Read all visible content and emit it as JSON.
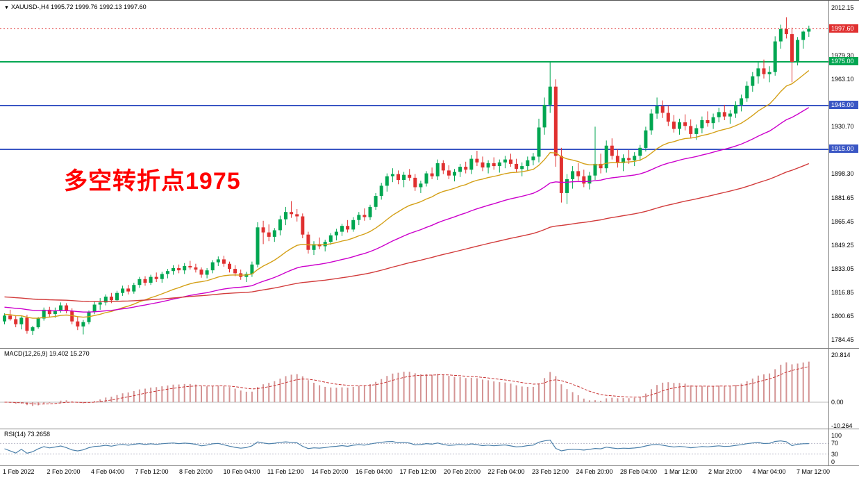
{
  "colors": {
    "up": "#00A651",
    "down": "#E03030",
    "hline_green": "#00A651",
    "hline_blue": "#3A56C4",
    "ma_fast": "#D4A017",
    "ma_mid": "#CC00CC",
    "ma_slow": "#D23B3B",
    "macd_hist": "#D49494",
    "macd_signal": "#C83232",
    "rsi": "#4C80AA"
  },
  "chart_data": {
    "type": "candlestick",
    "title_line": "XAUUSD-,H4 1995.72 1999.76 1992.13 1997.60",
    "symbol": "XAUUSD-",
    "timeframe": "H4",
    "current": {
      "open": 1995.72,
      "high": 1999.76,
      "low": 1992.13,
      "close": 1997.6
    },
    "price_range": {
      "top": 2012.15,
      "bottom": 1784.45
    },
    "price_ticks": [
      "2012.15",
      "1979.30",
      "1963.10",
      "1930.70",
      "1898.30",
      "1881.65",
      "1865.45",
      "1849.25",
      "1833.05",
      "1816.85",
      "1800.65",
      "1784.45"
    ],
    "time_labels": [
      "1 Feb 2022",
      "2 Feb 20:00",
      "4 Feb 04:00",
      "7 Feb 12:00",
      "8 Feb 20:00",
      "10 Feb 04:00",
      "11 Feb 12:00",
      "14 Feb 20:00",
      "16 Feb 04:00",
      "17 Feb 12:00",
      "20 Feb 20:00",
      "22 Feb 04:00",
      "23 Feb 12:00",
      "24 Feb 20:00",
      "28 Feb 04:00",
      "1 Mar 12:00",
      "2 Mar 20:00",
      "4 Mar 04:00",
      "7 Mar 12:00"
    ],
    "candles": [
      [
        1797.0,
        1802.5,
        1795.0,
        1801.0
      ],
      [
        1801.0,
        1805.0,
        1797.5,
        1798.5
      ],
      [
        1798.5,
        1801.0,
        1793.0,
        1795.0
      ],
      [
        1795.0,
        1800.5,
        1791.5,
        1799.5
      ],
      [
        1799.5,
        1801.5,
        1788.5,
        1790.5
      ],
      [
        1790.5,
        1794.0,
        1787.8,
        1793.0
      ],
      [
        1793.0,
        1800.0,
        1792.0,
        1799.0
      ],
      [
        1799.0,
        1806.5,
        1797.5,
        1805.0
      ],
      [
        1805.0,
        1807.0,
        1800.0,
        1802.0
      ],
      [
        1802.0,
        1806.5,
        1799.5,
        1804.5
      ],
      [
        1804.5,
        1810.0,
        1803.0,
        1808.0
      ],
      [
        1808.0,
        1809.5,
        1802.5,
        1804.0
      ],
      [
        1804.0,
        1806.0,
        1795.0,
        1797.0
      ],
      [
        1797.0,
        1800.0,
        1791.0,
        1793.5
      ],
      [
        1793.5,
        1798.0,
        1788.0,
        1796.5
      ],
      [
        1796.5,
        1804.5,
        1795.0,
        1803.5
      ],
      [
        1803.5,
        1811.0,
        1802.0,
        1808.5
      ],
      [
        1808.5,
        1813.0,
        1805.0,
        1810.0
      ],
      [
        1810.0,
        1815.5,
        1808.0,
        1814.0
      ],
      [
        1814.0,
        1816.5,
        1809.5,
        1811.5
      ],
      [
        1811.5,
        1818.0,
        1810.5,
        1816.5
      ],
      [
        1816.5,
        1821.5,
        1814.5,
        1819.5
      ],
      [
        1819.5,
        1822.0,
        1815.5,
        1817.5
      ],
      [
        1817.5,
        1823.5,
        1816.0,
        1822.0
      ],
      [
        1822.0,
        1827.5,
        1820.0,
        1826.0
      ],
      [
        1826.0,
        1828.0,
        1821.5,
        1823.5
      ],
      [
        1823.5,
        1829.0,
        1822.0,
        1827.5
      ],
      [
        1827.5,
        1830.5,
        1824.0,
        1826.0
      ],
      [
        1826.0,
        1831.0,
        1823.5,
        1829.5
      ],
      [
        1829.5,
        1833.0,
        1826.5,
        1831.5
      ],
      [
        1831.5,
        1835.5,
        1829.0,
        1833.5
      ],
      [
        1833.5,
        1836.0,
        1830.0,
        1832.0
      ],
      [
        1832.0,
        1837.0,
        1829.5,
        1835.0
      ],
      [
        1835.0,
        1838.5,
        1832.5,
        1834.0
      ],
      [
        1834.0,
        1836.5,
        1830.5,
        1832.5
      ],
      [
        1832.5,
        1834.0,
        1827.0,
        1829.0
      ],
      [
        1829.0,
        1833.5,
        1826.5,
        1832.0
      ],
      [
        1832.0,
        1839.0,
        1830.0,
        1837.5
      ],
      [
        1837.5,
        1841.5,
        1835.0,
        1839.5
      ],
      [
        1839.5,
        1842.0,
        1834.5,
        1836.5
      ],
      [
        1836.5,
        1838.0,
        1830.5,
        1833.0
      ],
      [
        1833.0,
        1835.5,
        1828.0,
        1830.0
      ],
      [
        1830.0,
        1832.5,
        1825.5,
        1827.5
      ],
      [
        1827.5,
        1831.0,
        1824.0,
        1829.5
      ],
      [
        1829.5,
        1838.0,
        1827.5,
        1836.0
      ],
      [
        1836.0,
        1865.0,
        1834.0,
        1861.5
      ],
      [
        1861.5,
        1866.0,
        1850.0,
        1858.0
      ],
      [
        1858.0,
        1863.5,
        1852.0,
        1855.0
      ],
      [
        1855.0,
        1861.0,
        1851.5,
        1859.5
      ],
      [
        1859.5,
        1869.5,
        1856.0,
        1867.0
      ],
      [
        1867.0,
        1875.5,
        1863.0,
        1872.0
      ],
      [
        1872.0,
        1879.5,
        1868.0,
        1870.5
      ],
      [
        1870.5,
        1874.0,
        1865.5,
        1869.0
      ],
      [
        1869.0,
        1871.0,
        1854.0,
        1856.5
      ],
      [
        1856.5,
        1858.5,
        1843.5,
        1846.0
      ],
      [
        1846.0,
        1852.0,
        1842.5,
        1850.0
      ],
      [
        1850.0,
        1854.5,
        1846.5,
        1848.5
      ],
      [
        1848.5,
        1853.0,
        1845.0,
        1851.5
      ],
      [
        1851.5,
        1857.5,
        1849.5,
        1856.0
      ],
      [
        1856.0,
        1860.5,
        1852.5,
        1858.5
      ],
      [
        1858.5,
        1864.0,
        1855.5,
        1862.5
      ],
      [
        1862.5,
        1866.5,
        1858.0,
        1860.0
      ],
      [
        1860.0,
        1868.5,
        1858.5,
        1866.5
      ],
      [
        1866.5,
        1872.0,
        1863.0,
        1870.0
      ],
      [
        1870.0,
        1874.5,
        1866.0,
        1868.5
      ],
      [
        1868.5,
        1877.0,
        1866.5,
        1875.5
      ],
      [
        1875.5,
        1885.0,
        1873.5,
        1883.0
      ],
      [
        1883.0,
        1892.0,
        1880.5,
        1890.0
      ],
      [
        1890.0,
        1898.5,
        1886.0,
        1896.5
      ],
      [
        1896.5,
        1902.0,
        1892.5,
        1898.0
      ],
      [
        1898.0,
        1900.5,
        1891.0,
        1894.0
      ],
      [
        1894.0,
        1899.5,
        1889.0,
        1897.5
      ],
      [
        1897.5,
        1901.5,
        1893.5,
        1895.5
      ],
      [
        1895.5,
        1898.0,
        1886.5,
        1889.0
      ],
      [
        1889.0,
        1893.5,
        1885.0,
        1891.5
      ],
      [
        1891.5,
        1900.0,
        1889.5,
        1898.5
      ],
      [
        1898.5,
        1902.5,
        1894.5,
        1896.5
      ],
      [
        1896.5,
        1908.0,
        1894.0,
        1905.5
      ],
      [
        1905.5,
        1907.5,
        1898.0,
        1900.5
      ],
      [
        1900.5,
        1904.0,
        1894.5,
        1897.0
      ],
      [
        1897.0,
        1901.5,
        1893.0,
        1899.5
      ],
      [
        1899.5,
        1905.0,
        1896.0,
        1903.0
      ],
      [
        1903.0,
        1906.5,
        1898.5,
        1901.0
      ],
      [
        1901.0,
        1911.0,
        1898.0,
        1908.5
      ],
      [
        1908.5,
        1914.0,
        1903.5,
        1906.0
      ],
      [
        1906.0,
        1910.0,
        1900.0,
        1902.5
      ],
      [
        1902.5,
        1907.5,
        1898.5,
        1905.5
      ],
      [
        1905.5,
        1909.5,
        1901.0,
        1903.5
      ],
      [
        1903.5,
        1908.0,
        1899.0,
        1906.0
      ],
      [
        1906.0,
        1910.5,
        1902.0,
        1908.0
      ],
      [
        1908.0,
        1912.0,
        1903.0,
        1905.0
      ],
      [
        1905.0,
        1908.5,
        1899.5,
        1901.5
      ],
      [
        1901.5,
        1906.0,
        1896.5,
        1903.5
      ],
      [
        1903.5,
        1910.0,
        1900.5,
        1907.5
      ],
      [
        1907.5,
        1912.5,
        1904.0,
        1910.0
      ],
      [
        1910.0,
        1936.0,
        1906.0,
        1930.0
      ],
      [
        1930.0,
        1950.5,
        1925.0,
        1945.5
      ],
      [
        1945.5,
        1974.5,
        1940.0,
        1958.0
      ],
      [
        1958.0,
        1963.0,
        1903.0,
        1910.5
      ],
      [
        1910.5,
        1916.0,
        1878.5,
        1885.0
      ],
      [
        1885.0,
        1898.0,
        1877.5,
        1894.5
      ],
      [
        1894.5,
        1903.5,
        1888.0,
        1900.0
      ],
      [
        1900.0,
        1905.5,
        1893.5,
        1896.5
      ],
      [
        1896.5,
        1901.0,
        1889.0,
        1891.5
      ],
      [
        1891.5,
        1899.5,
        1887.5,
        1897.0
      ],
      [
        1897.0,
        1930.5,
        1894.0,
        1905.0
      ],
      [
        1905.0,
        1912.0,
        1898.5,
        1902.0
      ],
      [
        1902.0,
        1921.0,
        1899.0,
        1917.5
      ],
      [
        1917.5,
        1922.5,
        1908.0,
        1910.5
      ],
      [
        1910.5,
        1915.0,
        1902.5,
        1905.5
      ],
      [
        1905.5,
        1911.5,
        1900.0,
        1909.0
      ],
      [
        1909.0,
        1914.5,
        1905.0,
        1907.5
      ],
      [
        1907.5,
        1913.0,
        1903.5,
        1910.5
      ],
      [
        1910.5,
        1918.0,
        1907.0,
        1916.0
      ],
      [
        1916.0,
        1930.5,
        1913.5,
        1928.0
      ],
      [
        1928.0,
        1942.5,
        1925.0,
        1939.5
      ],
      [
        1939.5,
        1950.5,
        1936.0,
        1944.5
      ],
      [
        1944.5,
        1948.5,
        1936.5,
        1940.0
      ],
      [
        1940.0,
        1945.0,
        1931.0,
        1934.0
      ],
      [
        1934.0,
        1938.5,
        1926.5,
        1929.0
      ],
      [
        1929.0,
        1936.0,
        1925.0,
        1933.5
      ],
      [
        1933.5,
        1939.0,
        1928.0,
        1931.0
      ],
      [
        1931.0,
        1935.5,
        1922.5,
        1925.5
      ],
      [
        1925.5,
        1932.0,
        1921.5,
        1929.5
      ],
      [
        1929.5,
        1937.5,
        1926.0,
        1935.0
      ],
      [
        1935.0,
        1941.0,
        1930.5,
        1933.0
      ],
      [
        1933.0,
        1939.5,
        1929.0,
        1937.0
      ],
      [
        1937.0,
        1943.5,
        1933.5,
        1940.5
      ],
      [
        1940.5,
        1945.5,
        1935.0,
        1937.5
      ],
      [
        1937.5,
        1942.0,
        1932.5,
        1939.5
      ],
      [
        1939.5,
        1948.0,
        1936.5,
        1945.5
      ],
      [
        1945.5,
        1952.5,
        1941.0,
        1950.0
      ],
      [
        1950.0,
        1961.5,
        1947.5,
        1958.5
      ],
      [
        1958.5,
        1968.0,
        1954.5,
        1965.0
      ],
      [
        1965.0,
        1974.5,
        1960.0,
        1970.5
      ],
      [
        1970.5,
        1976.5,
        1963.5,
        1966.5
      ],
      [
        1966.5,
        1972.0,
        1961.0,
        1968.0
      ],
      [
        1968.0,
        1992.5,
        1965.5,
        1989.0
      ],
      [
        1989.0,
        2000.5,
        1984.0,
        1997.5
      ],
      [
        1997.5,
        2005.5,
        1991.0,
        1994.0
      ],
      [
        1994.0,
        1998.5,
        1961.0,
        1975.0
      ],
      [
        1975.0,
        1992.0,
        1972.5,
        1990.0
      ],
      [
        1990.0,
        1996.5,
        1984.0,
        1995.7
      ],
      [
        1995.7,
        1999.8,
        1992.1,
        1997.6
      ]
    ],
    "overlays": {
      "annotation_text": "多空转折点1975",
      "hlines": [
        {
          "price": 1975.0,
          "color": "#00A651"
        },
        {
          "price": 1945.0,
          "color": "#3A56C4"
        },
        {
          "price": 1915.0,
          "color": "#3A56C4"
        }
      ],
      "price_tags": [
        {
          "text": "1997.60",
          "price": 1997.6,
          "color": "#E03030"
        },
        {
          "text": "1975.00",
          "price": 1975.0,
          "color": "#00A651"
        },
        {
          "text": "1945.00",
          "price": 1945.0,
          "color": "#3A56C4"
        },
        {
          "text": "1915.00",
          "price": 1915.0,
          "color": "#3A56C4"
        }
      ],
      "ma": [
        {
          "period": 20,
          "seed": 1802,
          "color": "#D4A017"
        },
        {
          "period": 48,
          "seed": 1807,
          "color": "#CC00CC"
        },
        {
          "period": 120,
          "seed": 1814,
          "color": "#D23B3B"
        }
      ]
    },
    "indicators": {
      "macd": {
        "label": "MACD(12,26,9) 19.402 15.270",
        "fast": 12,
        "slow": 26,
        "signal": 9,
        "main_value": 19.402,
        "signal_value": 15.27,
        "ticks": [
          "20.814",
          "0.00",
          "-10.264"
        ]
      },
      "rsi": {
        "label": "RSI(14) 73.2658",
        "period": 14,
        "value": 73.2658,
        "levels": [
          70,
          30
        ],
        "ticks": [
          "100",
          "70",
          "30",
          "0"
        ]
      }
    }
  },
  "header": {
    "arrow_icon": "▼"
  }
}
